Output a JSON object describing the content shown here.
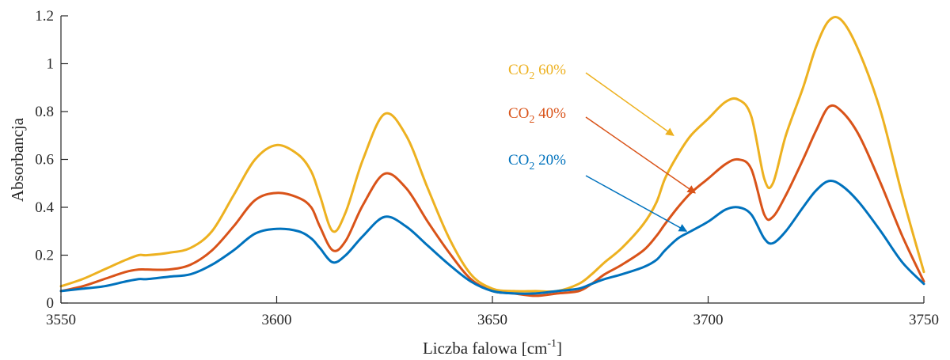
{
  "chart_data": {
    "type": "line",
    "xlabel": "Liczba falowa [cm",
    "xlabel_sup": "-1",
    "xlabel_end": "]",
    "ylabel": "Absorbancja",
    "xlim": [
      3550,
      3750
    ],
    "ylim": [
      0,
      1.2
    ],
    "xticks": [
      3550,
      3600,
      3650,
      3700,
      3750
    ],
    "yticks": [
      0,
      0.2,
      0.4,
      0.6,
      0.8,
      1,
      1.2
    ],
    "grid": false,
    "x": [
      3550,
      3555,
      3560,
      3565,
      3568,
      3570,
      3575,
      3580,
      3585,
      3590,
      3595,
      3600,
      3605,
      3608,
      3610,
      3613,
      3616,
      3620,
      3625,
      3630,
      3635,
      3640,
      3645,
      3650,
      3655,
      3660,
      3665,
      3670,
      3673,
      3676,
      3680,
      3685,
      3688,
      3690,
      3693,
      3696,
      3700,
      3704,
      3707,
      3710,
      3713,
      3715,
      3718,
      3722,
      3725,
      3728,
      3731,
      3735,
      3740,
      3745,
      3750
    ],
    "series": [
      {
        "color": "#EDB120",
        "values": [
          0.07,
          0.1,
          0.14,
          0.18,
          0.2,
          0.2,
          0.21,
          0.23,
          0.3,
          0.45,
          0.6,
          0.66,
          0.62,
          0.55,
          0.45,
          0.3,
          0.38,
          0.6,
          0.79,
          0.7,
          0.48,
          0.27,
          0.12,
          0.06,
          0.05,
          0.05,
          0.05,
          0.08,
          0.12,
          0.17,
          0.23,
          0.33,
          0.42,
          0.52,
          0.62,
          0.7,
          0.77,
          0.84,
          0.85,
          0.78,
          0.52,
          0.5,
          0.7,
          0.9,
          1.07,
          1.18,
          1.18,
          1.05,
          0.8,
          0.45,
          0.13
        ]
      },
      {
        "color": "#D95319",
        "values": [
          0.05,
          0.07,
          0.1,
          0.13,
          0.14,
          0.14,
          0.14,
          0.16,
          0.22,
          0.32,
          0.43,
          0.46,
          0.44,
          0.4,
          0.32,
          0.22,
          0.26,
          0.41,
          0.54,
          0.48,
          0.34,
          0.21,
          0.1,
          0.05,
          0.04,
          0.03,
          0.04,
          0.05,
          0.08,
          0.12,
          0.16,
          0.22,
          0.28,
          0.33,
          0.4,
          0.46,
          0.52,
          0.58,
          0.6,
          0.56,
          0.37,
          0.36,
          0.45,
          0.6,
          0.72,
          0.82,
          0.8,
          0.7,
          0.5,
          0.28,
          0.09
        ]
      },
      {
        "color": "#0072BD",
        "values": [
          0.05,
          0.06,
          0.07,
          0.09,
          0.1,
          0.1,
          0.11,
          0.12,
          0.16,
          0.22,
          0.29,
          0.31,
          0.3,
          0.27,
          0.23,
          0.17,
          0.2,
          0.28,
          0.36,
          0.32,
          0.24,
          0.16,
          0.09,
          0.05,
          0.04,
          0.04,
          0.05,
          0.06,
          0.08,
          0.1,
          0.12,
          0.15,
          0.18,
          0.22,
          0.27,
          0.3,
          0.34,
          0.39,
          0.4,
          0.37,
          0.27,
          0.25,
          0.3,
          0.4,
          0.47,
          0.51,
          0.49,
          0.42,
          0.3,
          0.17,
          0.08
        ]
      }
    ],
    "annotations": [
      {
        "label": "CO",
        "sub": "2",
        "rest": " 60%",
        "color": "#EDB120",
        "tx": 3692,
        "ty": 0.7
      },
      {
        "label": "CO",
        "sub": "2",
        "rest": " 40%",
        "color": "#D95319",
        "tx": 3697,
        "ty": 0.46
      },
      {
        "label": "CO",
        "sub": "2",
        "rest": " 20%",
        "color": "#0072BD",
        "tx": 3695,
        "ty": 0.3
      }
    ]
  }
}
